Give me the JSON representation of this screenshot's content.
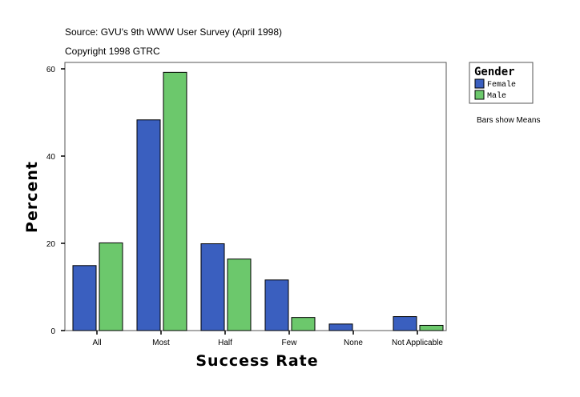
{
  "chart_data": {
    "type": "bar",
    "title": "Source: GVU's 9th WWW User Survey (April 1998)",
    "subtitle": "Copyright 1998 GTRC",
    "xlabel": "Success Rate",
    "ylabel": "Percent",
    "ylim": [
      0,
      61.5
    ],
    "yticks": [
      0,
      20,
      40,
      60
    ],
    "grid": false,
    "categories": [
      "All",
      "Most",
      "Half",
      "Few",
      "None",
      "Not Applicable"
    ],
    "series": [
      {
        "name": "Female",
        "color": "#3a5fbf",
        "values": [
          14.9,
          48.3,
          19.9,
          11.6,
          1.5,
          3.2
        ]
      },
      {
        "name": "Male",
        "color": "#6cc86c",
        "values": [
          20.1,
          59.2,
          16.4,
          3.0,
          0,
          1.2
        ]
      }
    ],
    "legend": {
      "title": "Gender",
      "position": "top-right"
    },
    "note": "Bars show Means"
  }
}
